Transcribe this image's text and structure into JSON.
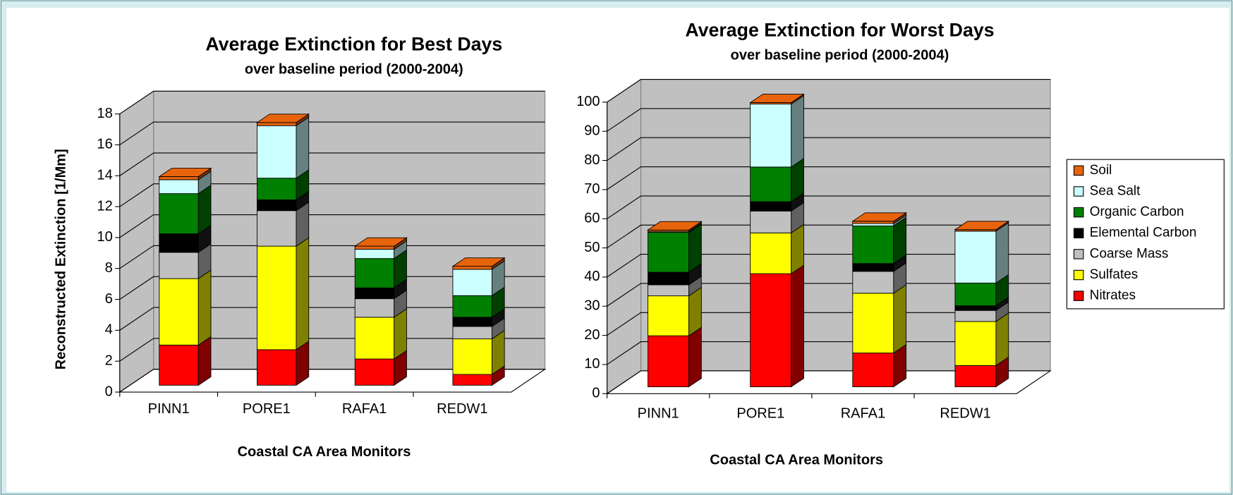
{
  "chart_data": [
    {
      "type": "bar3d-stacked",
      "title": "Average Extinction for Best Days",
      "subtitle": "over baseline period (2000-2004)",
      "ylabel": "Reconstructed Extinction [1/Mm]",
      "xlabel": "Coastal CA Area Monitors",
      "categories": [
        "PINN1",
        "PORE1",
        "RAFA1",
        "REDW1"
      ],
      "ylim": [
        0,
        18
      ],
      "yticks": [
        0,
        2,
        4,
        6,
        8,
        10,
        12,
        14,
        16,
        18
      ],
      "grid": true,
      "series": [
        {
          "color": "#ff0000",
          "values": [
            2.6,
            2.3,
            1.7,
            0.7
          ]
        },
        {
          "color": "#ffff00",
          "values": [
            4.3,
            6.7,
            2.7,
            2.3
          ]
        },
        {
          "color": "#c0c0c0",
          "values": [
            1.7,
            2.3,
            1.2,
            0.8
          ]
        },
        {
          "color": "#000000",
          "values": [
            1.2,
            0.7,
            0.7,
            0.6
          ]
        },
        {
          "color": "#008000",
          "values": [
            2.6,
            1.4,
            1.9,
            1.4
          ]
        },
        {
          "color": "#ccffff",
          "values": [
            0.9,
            3.4,
            0.6,
            1.7
          ]
        },
        {
          "color": "#e8640c",
          "values": [
            0.2,
            0.2,
            0.2,
            0.2
          ]
        }
      ]
    },
    {
      "type": "bar3d-stacked",
      "title": "Average Extinction for Worst Days",
      "subtitle": "over baseline period (2000-2004)",
      "xlabel": "Coastal CA Area Monitors",
      "categories": [
        "PINN1",
        "PORE1",
        "RAFA1",
        "REDW1"
      ],
      "ylim": [
        0,
        100
      ],
      "yticks": [
        0,
        10,
        20,
        30,
        40,
        50,
        60,
        70,
        80,
        90,
        100
      ],
      "grid": true,
      "legend": "right",
      "series": [
        {
          "name": "Nitrates",
          "color": "#ff0000",
          "values": [
            17.5,
            38.8,
            11.6,
            7.3
          ]
        },
        {
          "name": "Sulfates",
          "color": "#ffff00",
          "values": [
            13.7,
            14,
            20.5,
            15.1
          ]
        },
        {
          "name": "Coarse Mass",
          "color": "#c0c0c0",
          "values": [
            3.8,
            7.5,
            7.5,
            3.8
          ]
        },
        {
          "name": "Elemental Carbon",
          "color": "#000000",
          "values": [
            4.3,
            3.2,
            2.7,
            1.6
          ]
        },
        {
          "name": "Organic Carbon",
          "color": "#008000",
          "values": [
            13.7,
            11.9,
            12.9,
            7.8
          ]
        },
        {
          "name": "Sea Salt",
          "color": "#ccffff",
          "values": [
            0.3,
            21.6,
            0.8,
            17.8
          ]
        },
        {
          "name": "Soil",
          "color": "#e8640c",
          "values": [
            0.5,
            0.5,
            0.8,
            0.5
          ]
        }
      ]
    }
  ]
}
